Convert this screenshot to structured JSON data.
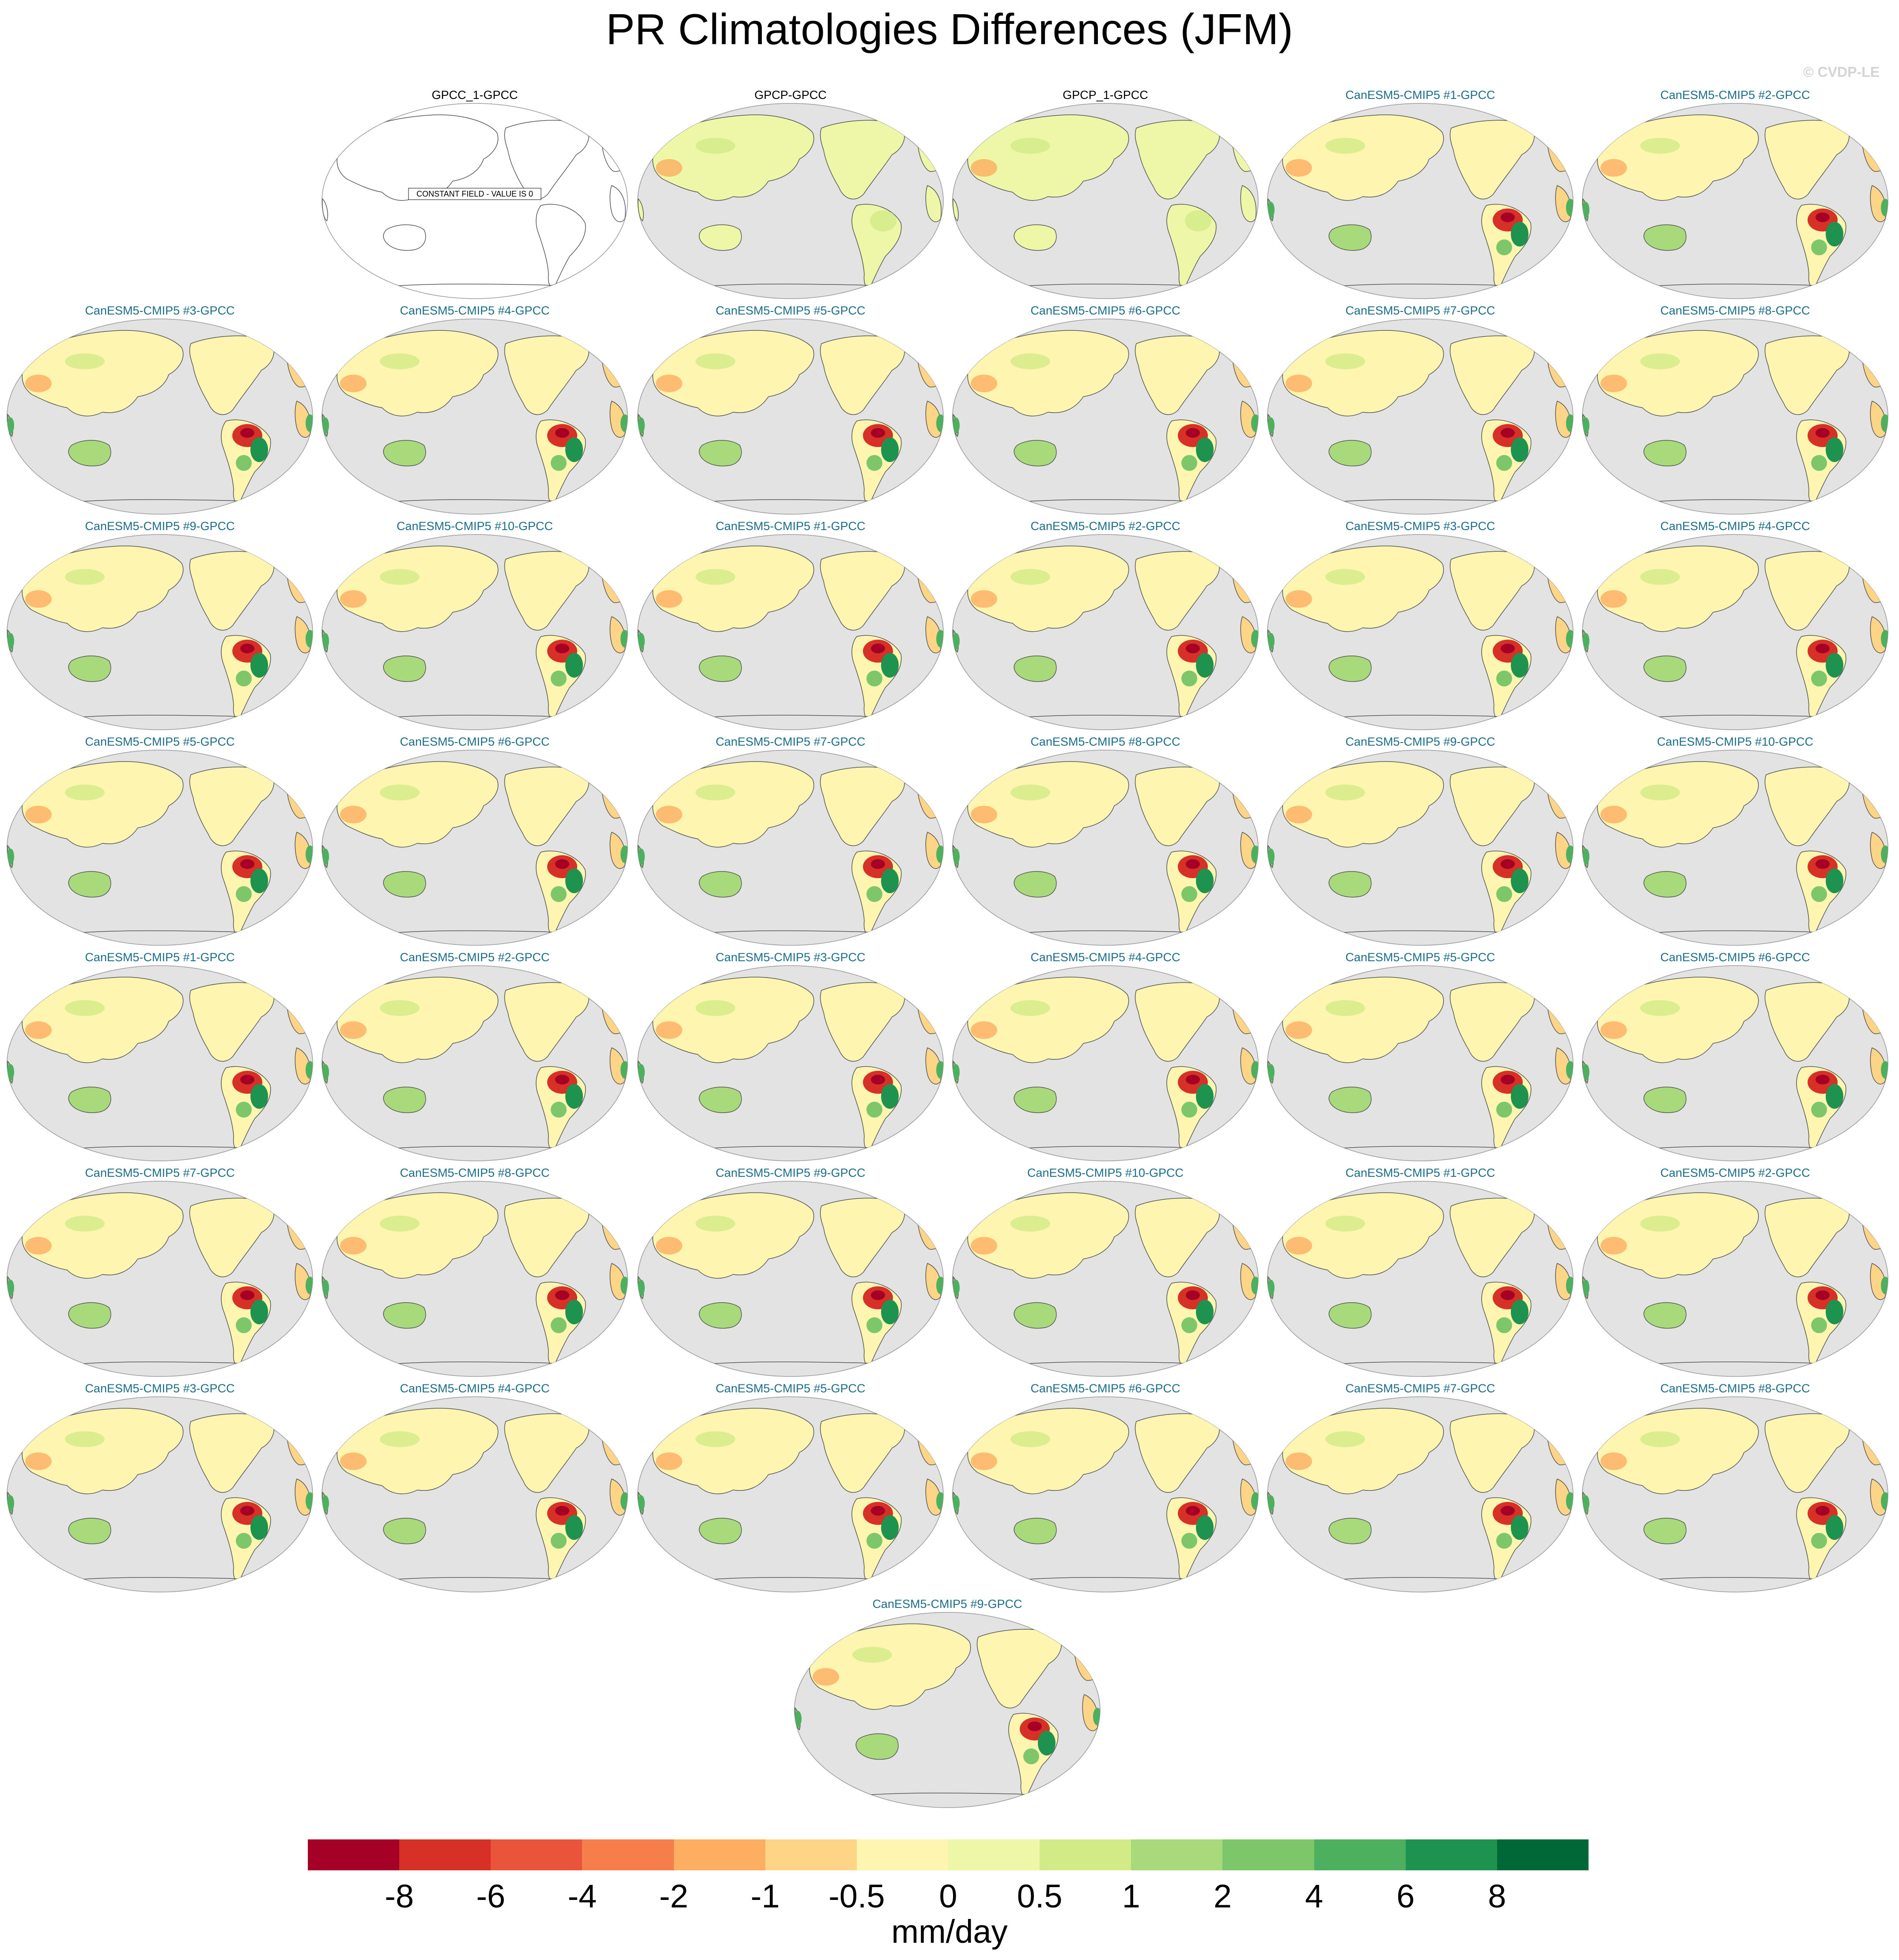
{
  "title": "PR Climatologies Differences (JFM)",
  "copyright": "© CVDP-LE",
  "panels": [
    {
      "label": "GPCC_1-GPCC",
      "kind": "constant",
      "note": "CONSTANT FIELD - VALUE IS 0"
    },
    {
      "label": "GPCP-GPCC",
      "kind": "obs"
    },
    {
      "label": "GPCP_1-GPCC",
      "kind": "obs"
    },
    {
      "label": "CanESM5-CMIP5 #1-GPCC",
      "kind": "model"
    },
    {
      "label": "CanESM5-CMIP5 #2-GPCC",
      "kind": "model"
    },
    {
      "label": "CanESM5-CMIP5 #3-GPCC",
      "kind": "model"
    },
    {
      "label": "CanESM5-CMIP5 #4-GPCC",
      "kind": "model"
    },
    {
      "label": "CanESM5-CMIP5 #5-GPCC",
      "kind": "model"
    },
    {
      "label": "CanESM5-CMIP5 #6-GPCC",
      "kind": "model"
    },
    {
      "label": "CanESM5-CMIP5 #7-GPCC",
      "kind": "model"
    },
    {
      "label": "CanESM5-CMIP5 #8-GPCC",
      "kind": "model"
    },
    {
      "label": "CanESM5-CMIP5 #9-GPCC",
      "kind": "model"
    },
    {
      "label": "CanESM5-CMIP5 #10-GPCC",
      "kind": "model"
    },
    {
      "label": "CanESM5-CMIP5 #1-GPCC",
      "kind": "model"
    },
    {
      "label": "CanESM5-CMIP5 #2-GPCC",
      "kind": "model"
    },
    {
      "label": "CanESM5-CMIP5 #3-GPCC",
      "kind": "model"
    },
    {
      "label": "CanESM5-CMIP5 #4-GPCC",
      "kind": "model"
    },
    {
      "label": "CanESM5-CMIP5 #5-GPCC",
      "kind": "model"
    },
    {
      "label": "CanESM5-CMIP5 #6-GPCC",
      "kind": "model"
    },
    {
      "label": "CanESM5-CMIP5 #7-GPCC",
      "kind": "model"
    },
    {
      "label": "CanESM5-CMIP5 #8-GPCC",
      "kind": "model"
    },
    {
      "label": "CanESM5-CMIP5 #9-GPCC",
      "kind": "model"
    },
    {
      "label": "CanESM5-CMIP5 #10-GPCC",
      "kind": "model"
    },
    {
      "label": "CanESM5-CMIP5 #1-GPCC",
      "kind": "model"
    },
    {
      "label": "CanESM5-CMIP5 #2-GPCC",
      "kind": "model"
    },
    {
      "label": "CanESM5-CMIP5 #3-GPCC",
      "kind": "model"
    },
    {
      "label": "CanESM5-CMIP5 #4-GPCC",
      "kind": "model"
    },
    {
      "label": "CanESM5-CMIP5 #5-GPCC",
      "kind": "model"
    },
    {
      "label": "CanESM5-CMIP5 #6-GPCC",
      "kind": "model"
    },
    {
      "label": "CanESM5-CMIP5 #7-GPCC",
      "kind": "model"
    },
    {
      "label": "CanESM5-CMIP5 #8-GPCC",
      "kind": "model"
    },
    {
      "label": "CanESM5-CMIP5 #9-GPCC",
      "kind": "model"
    },
    {
      "label": "CanESM5-CMIP5 #10-GPCC",
      "kind": "model"
    },
    {
      "label": "CanESM5-CMIP5 #1-GPCC",
      "kind": "model"
    },
    {
      "label": "CanESM5-CMIP5 #2-GPCC",
      "kind": "model"
    },
    {
      "label": "CanESM5-CMIP5 #3-GPCC",
      "kind": "model"
    },
    {
      "label": "CanESM5-CMIP5 #4-GPCC",
      "kind": "model"
    },
    {
      "label": "CanESM5-CMIP5 #5-GPCC",
      "kind": "model"
    },
    {
      "label": "CanESM5-CMIP5 #6-GPCC",
      "kind": "model"
    },
    {
      "label": "CanESM5-CMIP5 #7-GPCC",
      "kind": "model"
    },
    {
      "label": "CanESM5-CMIP5 #8-GPCC",
      "kind": "model"
    },
    {
      "label": "CanESM5-CMIP5 #9-GPCC",
      "kind": "model"
    }
  ],
  "colorbar": {
    "colors": [
      "#a50026",
      "#d73027",
      "#e8553a",
      "#f67e4b",
      "#fdae61",
      "#fed586",
      "#fef6b0",
      "#eef7a8",
      "#d2eb87",
      "#a8d97a",
      "#7ec66a",
      "#4cb05f",
      "#1e934f",
      "#006837"
    ],
    "ticks": [
      "-8",
      "-6",
      "-4",
      "-2",
      "-1",
      "-0.5",
      "0",
      "0.5",
      "1",
      "2",
      "4",
      "6",
      "8"
    ],
    "units": "mm/day"
  },
  "colors": {
    "ocean": "#e3e3e3",
    "coast": "#555555",
    "model_title": "#1a6e8a",
    "obs_title": "#000000"
  }
}
